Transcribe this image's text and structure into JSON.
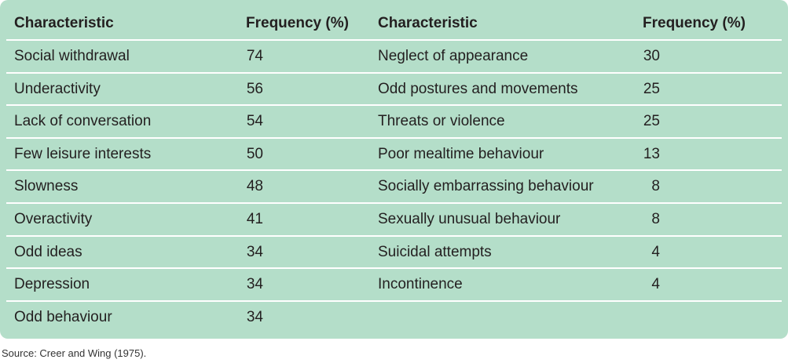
{
  "table": {
    "header": [
      "Characteristic",
      "Frequency (%)",
      "Characteristic",
      "Frequency (%)"
    ],
    "rows": [
      [
        "Social withdrawal",
        74,
        "Neglect of appearance",
        30
      ],
      [
        "Underactivity",
        56,
        "Odd postures and movements",
        25
      ],
      [
        "Lack of conversation",
        54,
        "Threats or violence",
        25
      ],
      [
        "Few leisure interests",
        50,
        "Poor mealtime behaviour",
        13
      ],
      [
        "Slowness",
        48,
        "Socially embarrassing behaviour",
        8
      ],
      [
        "Overactivity",
        41,
        "Sexually unusual behaviour",
        8
      ],
      [
        "Odd ideas",
        34,
        "Suicidal attempts",
        4
      ],
      [
        "Depression",
        34,
        "Incontinence",
        4
      ],
      [
        "Odd behaviour",
        34
      ]
    ]
  },
  "source": "Source: Creer and Wing (1975)."
}
